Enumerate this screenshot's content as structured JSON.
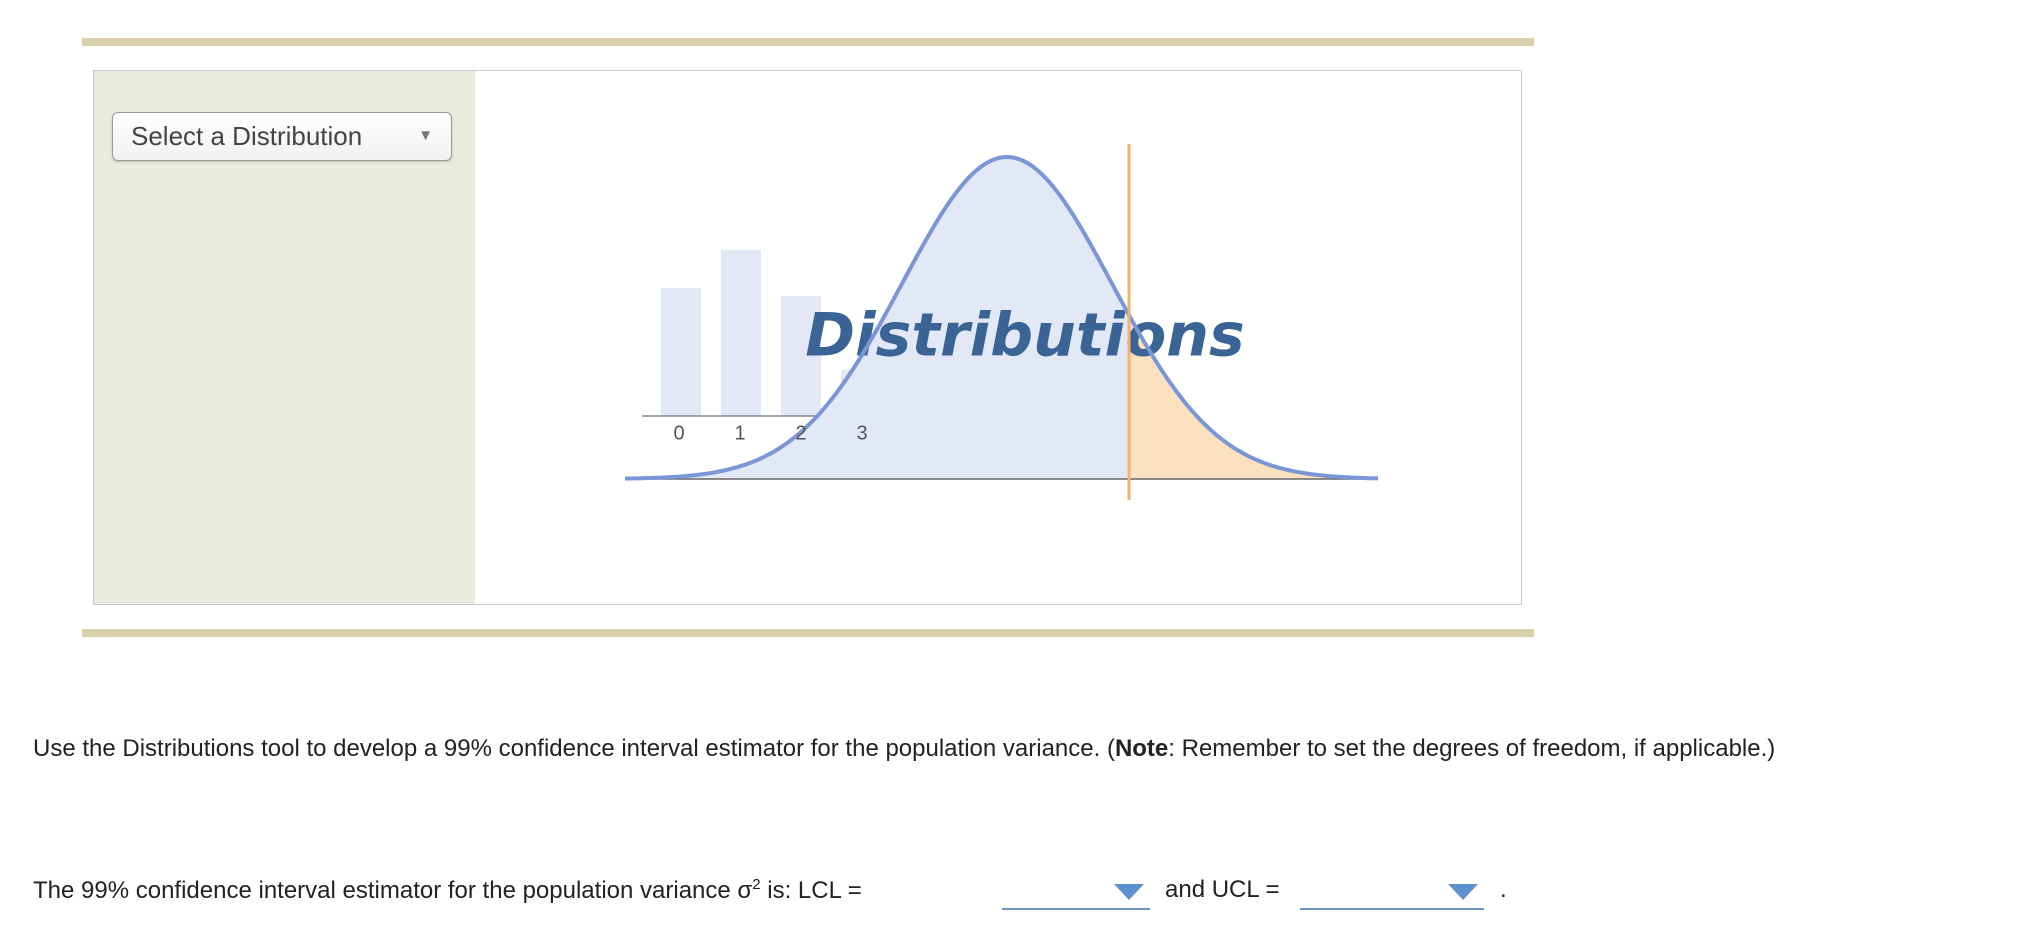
{
  "tool": {
    "select_label": "Select a Distribution",
    "logo_title": "Distributions",
    "logo_ticks": [
      "0",
      "1",
      "2",
      "3"
    ]
  },
  "instructions": {
    "before": "Use the Distributions tool to develop a 99% confidence interval estimator for the population variance. (",
    "bold": "Note",
    "after": ": Remember to set the degrees of freedom, if applicable.)"
  },
  "question": {
    "text": "The 99% confidence interval estimator for the population variance σ",
    "superscript": "2",
    "lcl": " is: LCL =",
    "ucl": "and UCL =",
    "end": "."
  }
}
